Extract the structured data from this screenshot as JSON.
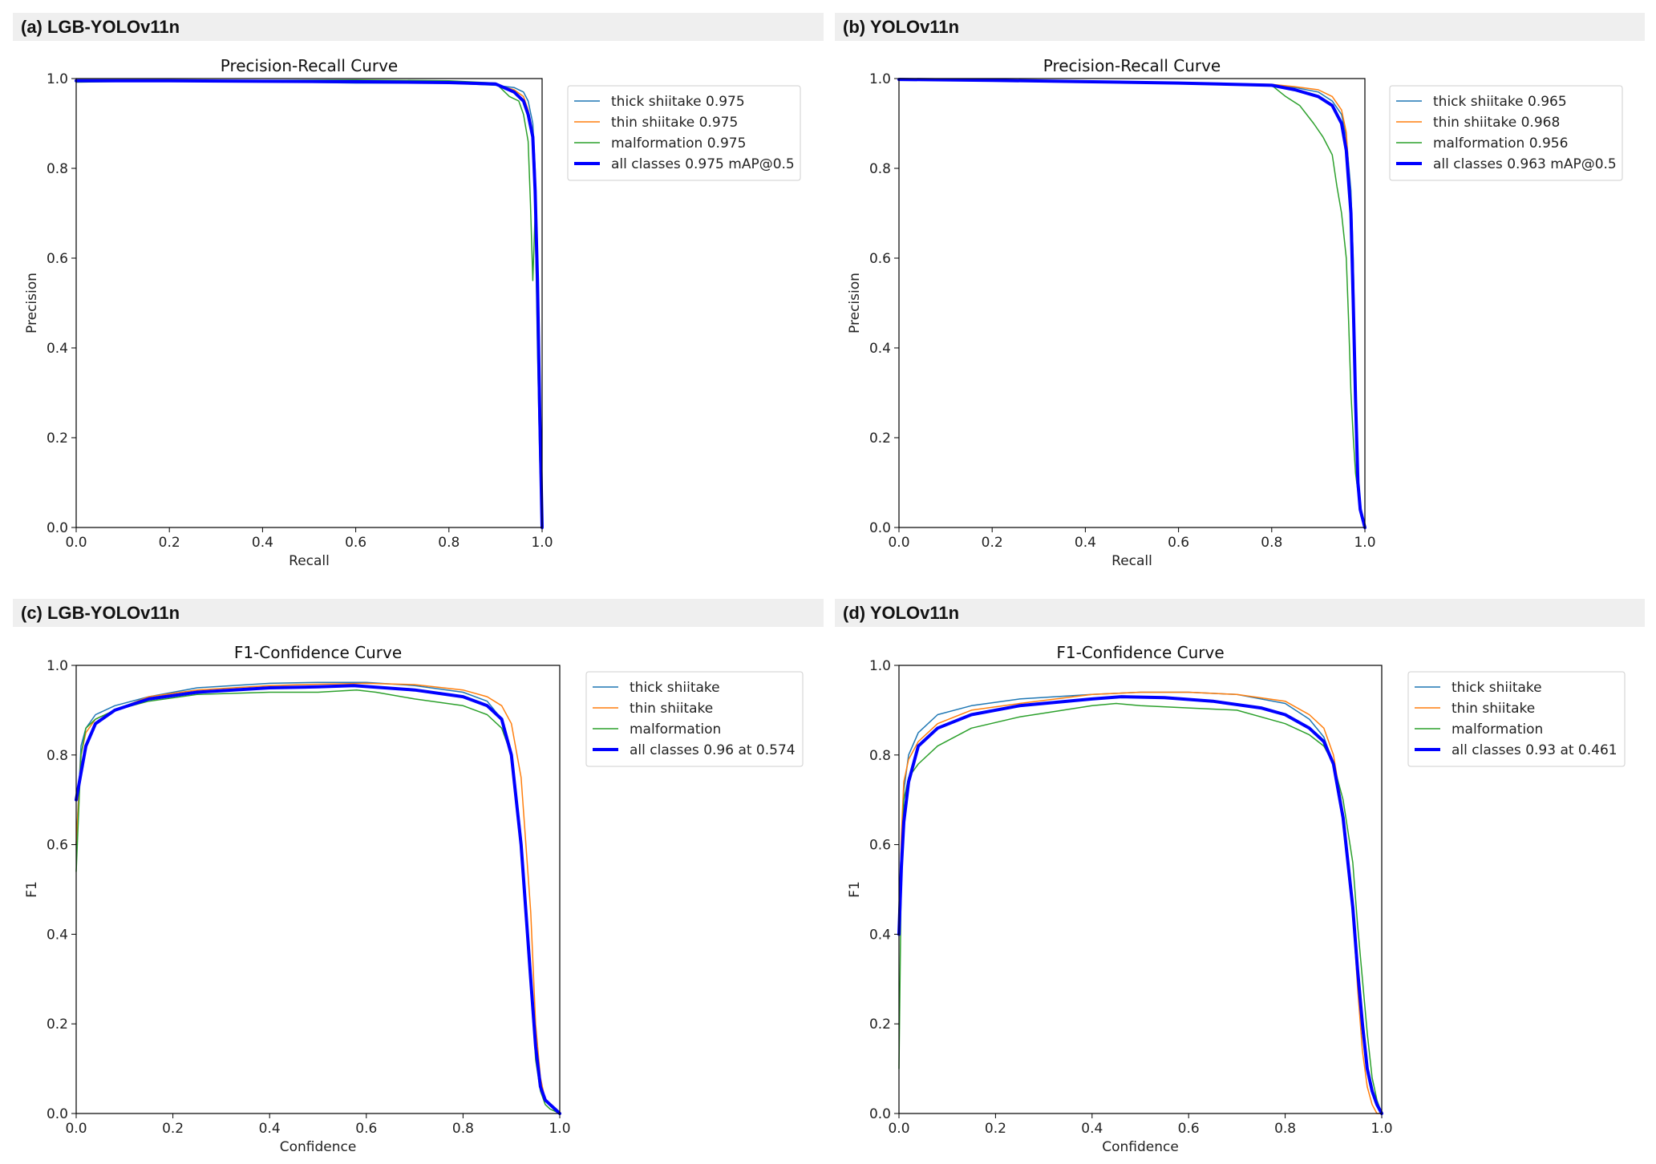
{
  "panels": [
    {
      "label": "(a)",
      "title": "LGB-YOLOv11n"
    },
    {
      "label": "(b)",
      "title": "YOLOv11n"
    },
    {
      "label": "(c)",
      "title": "LGB-YOLOv11n"
    },
    {
      "label": "(d)",
      "title": "YOLOv11n"
    }
  ],
  "colors": {
    "thick": "#1f77b4",
    "thin": "#ff7f0e",
    "malformation": "#2ca02c",
    "all": "#0000ff"
  },
  "chart_data": [
    {
      "type": "line",
      "title": "Precision-Recall Curve",
      "xlabel": "Recall",
      "ylabel": "Precision",
      "xlim": [
        0,
        1
      ],
      "ylim": [
        0,
        1
      ],
      "xticks": [
        "0.0",
        "0.2",
        "0.4",
        "0.6",
        "0.8",
        "1.0"
      ],
      "yticks": [
        "0.0",
        "0.2",
        "0.4",
        "0.6",
        "0.8",
        "1.0"
      ],
      "grid": false,
      "legend": "upper-right-outside",
      "series": [
        {
          "name": "thick shiitake 0.975",
          "color": "#1f77b4",
          "width": 1.5,
          "x": [
            0,
            0.2,
            0.4,
            0.6,
            0.8,
            0.9,
            0.94,
            0.96,
            0.97,
            0.98,
            0.985,
            0.99,
            0.995,
            1.0
          ],
          "y": [
            0.995,
            0.995,
            0.993,
            0.99,
            0.99,
            0.985,
            0.98,
            0.97,
            0.95,
            0.9,
            0.8,
            0.6,
            0.3,
            0.0
          ]
        },
        {
          "name": "thin shiitake 0.975",
          "color": "#ff7f0e",
          "width": 1.5,
          "x": [
            0,
            0.2,
            0.4,
            0.6,
            0.8,
            0.9,
            0.94,
            0.96,
            0.97,
            0.98,
            0.985,
            0.99,
            0.995,
            1.0
          ],
          "y": [
            0.997,
            0.996,
            0.994,
            0.992,
            0.99,
            0.987,
            0.975,
            0.96,
            0.93,
            0.88,
            0.78,
            0.62,
            0.3,
            0.0
          ]
        },
        {
          "name": "malformation 0.975",
          "color": "#2ca02c",
          "width": 1.5,
          "x": [
            0,
            0.2,
            0.4,
            0.6,
            0.8,
            0.9,
            0.93,
            0.95,
            0.96,
            0.97,
            0.975,
            0.98,
            0.985,
            0.99,
            0.995,
            1.0
          ],
          "y": [
            0.992,
            0.995,
            0.996,
            0.997,
            0.995,
            0.99,
            0.96,
            0.95,
            0.92,
            0.86,
            0.72,
            0.55,
            0.7,
            0.4,
            0.15,
            0.0
          ]
        },
        {
          "name": "all classes 0.975 mAP@0.5",
          "color": "#0000ff",
          "width": 4,
          "x": [
            0,
            0.2,
            0.4,
            0.6,
            0.8,
            0.9,
            0.94,
            0.96,
            0.97,
            0.98,
            0.985,
            0.99,
            0.995,
            1.0
          ],
          "y": [
            0.995,
            0.995,
            0.994,
            0.993,
            0.991,
            0.988,
            0.97,
            0.95,
            0.92,
            0.87,
            0.75,
            0.55,
            0.25,
            0.0
          ]
        }
      ]
    },
    {
      "type": "line",
      "title": "Precision-Recall Curve",
      "xlabel": "Recall",
      "ylabel": "Precision",
      "xlim": [
        0,
        1
      ],
      "ylim": [
        0,
        1
      ],
      "xticks": [
        "0.0",
        "0.2",
        "0.4",
        "0.6",
        "0.8",
        "1.0"
      ],
      "yticks": [
        "0.0",
        "0.2",
        "0.4",
        "0.6",
        "0.8",
        "1.0"
      ],
      "grid": false,
      "legend": "upper-right-outside",
      "series": [
        {
          "name": "thick shiitake 0.965",
          "color": "#1f77b4",
          "width": 1.5,
          "x": [
            0,
            0.2,
            0.4,
            0.6,
            0.8,
            0.85,
            0.9,
            0.93,
            0.95,
            0.96,
            0.97,
            0.975,
            0.98,
            0.985,
            0.99,
            1.0
          ],
          "y": [
            0.998,
            0.996,
            0.994,
            0.99,
            0.985,
            0.98,
            0.97,
            0.95,
            0.92,
            0.87,
            0.75,
            0.6,
            0.3,
            0.12,
            0.05,
            0.0
          ]
        },
        {
          "name": "thin shiitake 0.968",
          "color": "#ff7f0e",
          "width": 1.5,
          "x": [
            0,
            0.2,
            0.4,
            0.6,
            0.8,
            0.85,
            0.9,
            0.93,
            0.95,
            0.96,
            0.97,
            0.975,
            0.98,
            0.985,
            0.99,
            1.0
          ],
          "y": [
            0.998,
            0.996,
            0.994,
            0.991,
            0.987,
            0.982,
            0.975,
            0.96,
            0.93,
            0.88,
            0.72,
            0.55,
            0.3,
            0.1,
            0.04,
            0.0
          ]
        },
        {
          "name": "malformation 0.956",
          "color": "#2ca02c",
          "width": 1.5,
          "x": [
            0,
            0.2,
            0.4,
            0.6,
            0.8,
            0.83,
            0.86,
            0.89,
            0.91,
            0.93,
            0.94,
            0.95,
            0.96,
            0.965,
            0.97,
            0.975,
            0.98,
            0.985,
            0.99,
            1.0
          ],
          "y": [
            0.998,
            0.995,
            0.993,
            0.99,
            0.985,
            0.96,
            0.94,
            0.9,
            0.87,
            0.83,
            0.76,
            0.7,
            0.6,
            0.46,
            0.3,
            0.2,
            0.12,
            0.08,
            0.04,
            0.0
          ]
        },
        {
          "name": "all classes 0.963 mAP@0.5",
          "color": "#0000ff",
          "width": 4,
          "x": [
            0,
            0.2,
            0.4,
            0.6,
            0.8,
            0.85,
            0.9,
            0.93,
            0.95,
            0.96,
            0.97,
            0.975,
            0.98,
            0.985,
            0.99,
            1.0
          ],
          "y": [
            0.998,
            0.996,
            0.993,
            0.99,
            0.985,
            0.975,
            0.96,
            0.94,
            0.9,
            0.84,
            0.7,
            0.5,
            0.28,
            0.1,
            0.04,
            0.0
          ]
        }
      ]
    },
    {
      "type": "line",
      "title": "F1-Confidence Curve",
      "xlabel": "Confidence",
      "ylabel": "F1",
      "xlim": [
        0,
        1
      ],
      "ylim": [
        0,
        1
      ],
      "xticks": [
        "0.0",
        "0.2",
        "0.4",
        "0.6",
        "0.8",
        "1.0"
      ],
      "yticks": [
        "0.0",
        "0.2",
        "0.4",
        "0.6",
        "0.8",
        "1.0"
      ],
      "grid": false,
      "legend": "upper-right-outside",
      "series": [
        {
          "name": "thick shiitake",
          "color": "#1f77b4",
          "width": 1.5,
          "x": [
            0,
            0.01,
            0.02,
            0.04,
            0.08,
            0.15,
            0.25,
            0.4,
            0.5,
            0.6,
            0.7,
            0.8,
            0.85,
            0.88,
            0.9,
            0.92,
            0.94,
            0.95,
            0.96,
            0.97,
            0.98,
            0.99,
            1.0
          ],
          "y": [
            0.6,
            0.82,
            0.86,
            0.89,
            0.91,
            0.93,
            0.95,
            0.96,
            0.962,
            0.962,
            0.955,
            0.94,
            0.92,
            0.88,
            0.8,
            0.6,
            0.3,
            0.15,
            0.06,
            0.03,
            0.02,
            0.01,
            0.0
          ]
        },
        {
          "name": "thin shiitake",
          "color": "#ff7f0e",
          "width": 1.5,
          "x": [
            0,
            0.01,
            0.02,
            0.04,
            0.08,
            0.15,
            0.25,
            0.4,
            0.5,
            0.6,
            0.7,
            0.8,
            0.85,
            0.88,
            0.9,
            0.92,
            0.94,
            0.95,
            0.96,
            0.97,
            0.98,
            0.99,
            1.0
          ],
          "y": [
            0.6,
            0.8,
            0.85,
            0.88,
            0.9,
            0.93,
            0.945,
            0.955,
            0.958,
            0.96,
            0.957,
            0.945,
            0.93,
            0.91,
            0.87,
            0.75,
            0.45,
            0.2,
            0.08,
            0.03,
            0.02,
            0.01,
            0.0
          ]
        },
        {
          "name": "malformation",
          "color": "#2ca02c",
          "width": 1.5,
          "x": [
            0,
            0.01,
            0.02,
            0.04,
            0.08,
            0.15,
            0.25,
            0.4,
            0.5,
            0.58,
            0.62,
            0.7,
            0.8,
            0.85,
            0.88,
            0.9,
            0.92,
            0.94,
            0.95,
            0.96,
            0.97,
            0.98,
            1.0
          ],
          "y": [
            0.54,
            0.8,
            0.86,
            0.88,
            0.9,
            0.92,
            0.935,
            0.94,
            0.94,
            0.945,
            0.94,
            0.925,
            0.91,
            0.89,
            0.86,
            0.8,
            0.6,
            0.3,
            0.12,
            0.05,
            0.02,
            0.01,
            0.0
          ]
        },
        {
          "name": "all classes 0.96 at 0.574",
          "color": "#0000ff",
          "width": 4,
          "x": [
            0,
            0.01,
            0.02,
            0.04,
            0.08,
            0.15,
            0.25,
            0.4,
            0.5,
            0.574,
            0.7,
            0.8,
            0.85,
            0.88,
            0.9,
            0.92,
            0.94,
            0.95,
            0.96,
            0.97,
            0.98,
            0.99,
            1.0
          ],
          "y": [
            0.7,
            0.76,
            0.82,
            0.87,
            0.9,
            0.925,
            0.94,
            0.95,
            0.952,
            0.955,
            0.945,
            0.93,
            0.91,
            0.88,
            0.8,
            0.6,
            0.3,
            0.15,
            0.06,
            0.03,
            0.02,
            0.01,
            0.0
          ]
        }
      ]
    },
    {
      "type": "line",
      "title": "F1-Confidence Curve",
      "xlabel": "Confidence",
      "ylabel": "F1",
      "xlim": [
        0,
        1
      ],
      "ylim": [
        0,
        1
      ],
      "xticks": [
        "0.0",
        "0.2",
        "0.4",
        "0.6",
        "0.8",
        "1.0"
      ],
      "yticks": [
        "0.0",
        "0.2",
        "0.4",
        "0.6",
        "0.8",
        "1.0"
      ],
      "grid": false,
      "legend": "upper-right-outside",
      "series": [
        {
          "name": "thick shiitake",
          "color": "#1f77b4",
          "width": 1.5,
          "x": [
            0,
            0.005,
            0.01,
            0.02,
            0.04,
            0.08,
            0.15,
            0.25,
            0.4,
            0.5,
            0.6,
            0.7,
            0.8,
            0.85,
            0.88,
            0.9,
            0.92,
            0.94,
            0.95,
            0.96,
            0.97,
            0.98,
            0.99,
            1.0
          ],
          "y": [
            0.45,
            0.6,
            0.72,
            0.8,
            0.85,
            0.89,
            0.91,
            0.925,
            0.935,
            0.94,
            0.94,
            0.935,
            0.915,
            0.88,
            0.84,
            0.78,
            0.65,
            0.45,
            0.3,
            0.18,
            0.1,
            0.05,
            0.02,
            0.0
          ]
        },
        {
          "name": "thin shiitake",
          "color": "#ff7f0e",
          "width": 1.5,
          "x": [
            0,
            0.005,
            0.01,
            0.02,
            0.04,
            0.08,
            0.15,
            0.25,
            0.4,
            0.5,
            0.6,
            0.7,
            0.8,
            0.85,
            0.88,
            0.9,
            0.92,
            0.94,
            0.95,
            0.96,
            0.97,
            0.98,
            0.99,
            1.0
          ],
          "y": [
            0.4,
            0.62,
            0.74,
            0.79,
            0.83,
            0.87,
            0.9,
            0.915,
            0.935,
            0.94,
            0.94,
            0.935,
            0.92,
            0.89,
            0.86,
            0.8,
            0.67,
            0.45,
            0.28,
            0.14,
            0.06,
            0.02,
            0.0,
            0.0
          ]
        },
        {
          "name": "malformation",
          "color": "#2ca02c",
          "width": 1.5,
          "x": [
            0,
            0.005,
            0.01,
            0.02,
            0.04,
            0.08,
            0.15,
            0.25,
            0.4,
            0.45,
            0.5,
            0.6,
            0.7,
            0.8,
            0.85,
            0.88,
            0.9,
            0.92,
            0.94,
            0.95,
            0.96,
            0.97,
            0.98,
            0.99,
            1.0
          ],
          "y": [
            0.1,
            0.55,
            0.7,
            0.75,
            0.78,
            0.82,
            0.86,
            0.885,
            0.91,
            0.915,
            0.91,
            0.905,
            0.9,
            0.87,
            0.845,
            0.82,
            0.78,
            0.7,
            0.56,
            0.42,
            0.3,
            0.18,
            0.08,
            0.03,
            0.0
          ]
        },
        {
          "name": "all classes 0.93 at 0.461",
          "color": "#0000ff",
          "width": 4,
          "x": [
            0,
            0.005,
            0.01,
            0.02,
            0.04,
            0.08,
            0.15,
            0.25,
            0.4,
            0.461,
            0.55,
            0.65,
            0.75,
            0.8,
            0.85,
            0.88,
            0.9,
            0.92,
            0.94,
            0.95,
            0.96,
            0.97,
            0.98,
            0.99,
            1.0
          ],
          "y": [
            0.4,
            0.55,
            0.65,
            0.74,
            0.82,
            0.86,
            0.89,
            0.91,
            0.925,
            0.93,
            0.928,
            0.92,
            0.905,
            0.89,
            0.86,
            0.83,
            0.78,
            0.66,
            0.46,
            0.32,
            0.2,
            0.1,
            0.05,
            0.02,
            0.0
          ]
        }
      ]
    }
  ]
}
